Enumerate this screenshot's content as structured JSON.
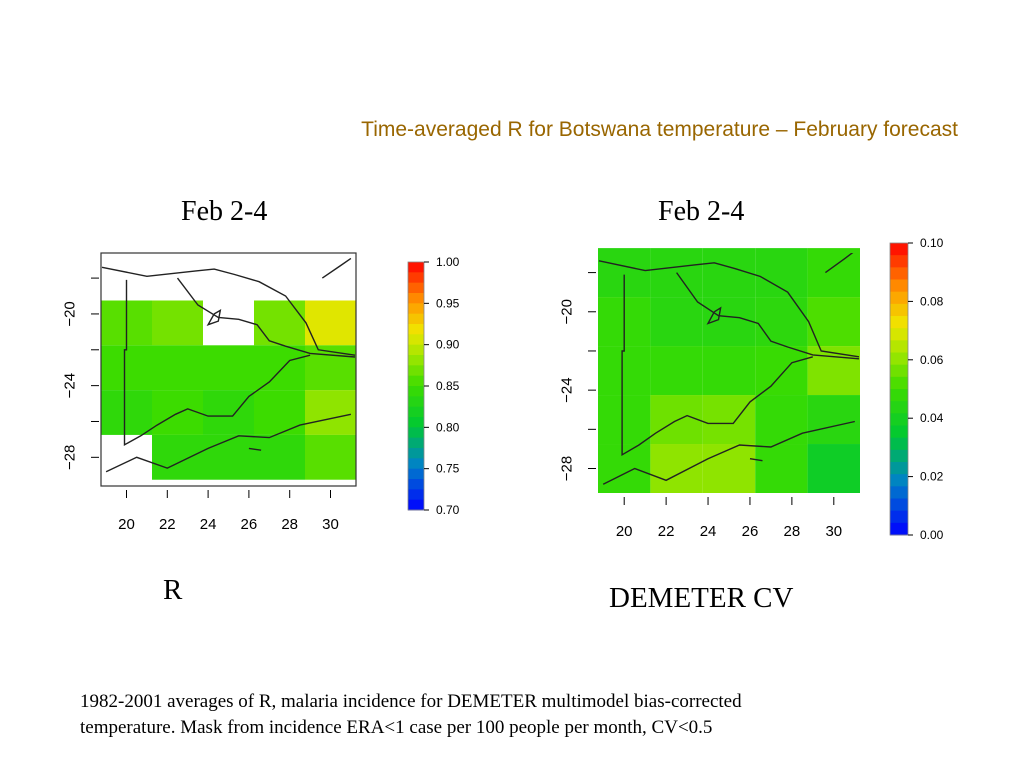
{
  "title": "Time-averaged R for Botswana temperature – February forecast",
  "footnote_line1": "1982-2001 averages of R, malaria incidence for DEMETER multimodel bias-corrected",
  "footnote_line2": "temperature. Mask from incidence ERA<1 case per 100 people per month, CV<0.5",
  "colors": {
    "title": "#996600",
    "border_lines": "#222222"
  },
  "chart_data": [
    {
      "type": "heatmap",
      "title": "Feb 2-4",
      "caption": "R",
      "xlabel": "",
      "ylabel": "",
      "x_ticks": [
        20,
        22,
        24,
        26,
        28,
        30
      ],
      "y_ticks": [
        -20,
        -24,
        -28
      ],
      "x_tick_labels": [
        "20",
        "22",
        "24",
        "26",
        "28",
        "30"
      ],
      "y_tick_labels": [
        "−20",
        "−24",
        "−28"
      ],
      "xlim": [
        18.75,
        31.25
      ],
      "ylim": [
        -29.6,
        -16.6
      ],
      "cell_lon_edges": [
        18.75,
        21.25,
        23.75,
        26.25,
        28.75,
        31.25
      ],
      "cell_lat_edges": [
        -19.25,
        -21.75,
        -24.25,
        -26.75,
        -29.25
      ],
      "values": [
        [
          0.86,
          0.87,
          null,
          0.87,
          0.91
        ],
        [
          0.85,
          0.85,
          0.85,
          0.85,
          0.86
        ],
        [
          0.84,
          0.85,
          0.84,
          0.85,
          0.88
        ],
        [
          null,
          0.84,
          0.84,
          0.84,
          0.86
        ]
      ],
      "colorbar": {
        "min": 0.7,
        "max": 1.0,
        "tick_values": [
          1.0,
          0.95,
          0.9,
          0.85,
          0.8,
          0.75,
          0.7
        ],
        "tick_labels": [
          "1.00",
          "0.95",
          "0.90",
          "0.85",
          "0.80",
          "0.75",
          "0.70"
        ]
      }
    },
    {
      "type": "heatmap",
      "title": "Feb 2-4",
      "caption": "DEMETER CV",
      "xlabel": "",
      "ylabel": "",
      "x_ticks": [
        20,
        22,
        24,
        26,
        28,
        30
      ],
      "y_ticks": [
        -20,
        -24,
        -28
      ],
      "x_tick_labels": [
        "20",
        "22",
        "24",
        "26",
        "28",
        "30"
      ],
      "y_tick_labels": [
        "−20",
        "−24",
        "−28"
      ],
      "xlim": [
        18.75,
        31.25
      ],
      "ylim": [
        -29.25,
        -17.0
      ],
      "cell_lon_edges": [
        18.75,
        21.25,
        23.75,
        26.25,
        28.75,
        31.25
      ],
      "cell_lat_edges": [
        -16.75,
        -19.25,
        -21.75,
        -24.25,
        -26.75,
        -29.25
      ],
      "values": [
        [
          0.045,
          0.045,
          0.045,
          0.045,
          0.048
        ],
        [
          0.048,
          0.045,
          0.045,
          0.046,
          0.052
        ],
        [
          0.048,
          0.048,
          0.048,
          0.049,
          0.058
        ],
        [
          0.048,
          0.056,
          0.057,
          0.048,
          0.045
        ],
        [
          0.048,
          0.06,
          0.06,
          0.048,
          0.038
        ]
      ],
      "colorbar": {
        "min": 0.0,
        "max": 0.1,
        "tick_values": [
          0.1,
          0.08,
          0.06,
          0.04,
          0.02,
          0.0
        ],
        "tick_labels": [
          "0.10",
          "0.08",
          "0.06",
          "0.04",
          "0.02",
          "0.00"
        ]
      }
    }
  ]
}
